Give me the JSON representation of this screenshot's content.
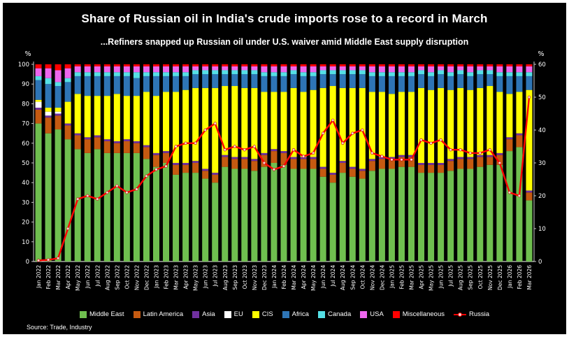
{
  "header": {
    "title": "Share of Russian oil in India's crude imports rose to a record in March",
    "subtitle": "...Refiners snapped up Russian oil under U.S. waiver amid Middle East supply disruption"
  },
  "source": "Source: Trade, Industry",
  "colors": {
    "background": "#000000",
    "text": "#ffffff",
    "russia_line": "#ff0000"
  },
  "chart_data": {
    "type": "bar",
    "stacked": true,
    "title": "Share of Russian oil in India's crude imports rose to a record in March",
    "subtitle": "...Refiners snapped up Russian oil under U.S. waiver amid Middle East supply disruption",
    "left_axis": {
      "label": "%",
      "min": 0,
      "max": 100,
      "step": 10
    },
    "right_axis": {
      "label": "%",
      "min": 0,
      "max": 60,
      "step": 10
    },
    "legend_position": "bottom",
    "grid": false,
    "categories": [
      "Jan 2022",
      "Feb 2022",
      "Mar 2022",
      "Apr 2022",
      "May 2022",
      "Jun 2022",
      "Jul 2022",
      "Aug 2022",
      "Sep 2022",
      "Oct 2022",
      "Nov 2022",
      "Dec 2022",
      "Jan 2023",
      "Feb 2023",
      "Mar 2023",
      "Apr 2023",
      "May 2023",
      "Jun 2023",
      "Jul 2023",
      "Aug 2023",
      "Sep 2023",
      "Oct 2023",
      "Nov 2023",
      "Dec 2023",
      "Jan 2024",
      "Feb 2024",
      "Mar 2024",
      "Apr 2024",
      "May 2024",
      "Jun 2024",
      "Jul 2024",
      "Aug 2024",
      "Sep 2024",
      "Oct 2024",
      "Nov 2024",
      "Dec 2024",
      "Jan 2025",
      "Feb 2025",
      "Mar 2025",
      "Apr 2025",
      "May 2025",
      "Jun 2025",
      "Jul 2025",
      "Aug 2025",
      "Sep 2025",
      "Oct 2025",
      "Nov 2025",
      "Dec 2025",
      "Jan 2026",
      "Feb 2026",
      "Mar 2026"
    ],
    "series": [
      {
        "name": "Middle East",
        "color": "#6fbf4f",
        "values": [
          70,
          65,
          67,
          62,
          57,
          55,
          57,
          55,
          55,
          55,
          55,
          52,
          48,
          50,
          44,
          45,
          45,
          42,
          40,
          48,
          47,
          47,
          46,
          48,
          50,
          49,
          47,
          47,
          47,
          43,
          40,
          45,
          43,
          42,
          46,
          47,
          47,
          48,
          48,
          45,
          45,
          45,
          46,
          47,
          47,
          48,
          49,
          49,
          56,
          58,
          31
        ]
      },
      {
        "name": "Latin America",
        "color": "#c55a11",
        "values": [
          7,
          8,
          7,
          7,
          7,
          7,
          6,
          6,
          5,
          6,
          5,
          6,
          6,
          5,
          5,
          4,
          5,
          4,
          4,
          5,
          5,
          5,
          5,
          6,
          6,
          6,
          5,
          5,
          5,
          4,
          4,
          5,
          4,
          4,
          5,
          5,
          5,
          5,
          5,
          4,
          4,
          4,
          5,
          5,
          5,
          5,
          4,
          5,
          6,
          6,
          4
        ]
      },
      {
        "name": "Asia",
        "color": "#7030a0",
        "values": [
          1,
          1,
          1,
          1,
          1,
          1,
          1,
          1,
          1,
          1,
          1,
          1,
          1,
          1,
          1,
          1,
          1,
          1,
          1,
          1,
          1,
          1,
          1,
          1,
          1,
          1,
          1,
          1,
          1,
          1,
          1,
          1,
          1,
          1,
          1,
          1,
          1,
          1,
          1,
          1,
          1,
          1,
          1,
          1,
          1,
          1,
          1,
          1,
          1,
          1,
          1
        ]
      },
      {
        "name": "EU",
        "color": "#ffffff",
        "values": [
          3,
          2,
          1,
          0,
          0,
          0,
          0,
          0,
          0,
          0,
          0,
          0,
          0,
          0,
          0,
          0,
          0,
          0,
          0,
          0,
          0,
          0,
          0,
          0,
          0,
          0,
          0,
          0,
          0,
          0,
          0,
          0,
          0,
          0,
          0,
          0,
          0,
          0,
          0,
          0,
          0,
          0,
          0,
          0,
          0,
          0,
          0,
          0,
          0,
          0,
          0
        ]
      },
      {
        "name": "CIS",
        "color": "#ffff00",
        "values": [
          1,
          2,
          2,
          11,
          20,
          21,
          20,
          22,
          24,
          22,
          23,
          27,
          29,
          30,
          36,
          37,
          37,
          41,
          43,
          35,
          36,
          35,
          36,
          31,
          29,
          30,
          35,
          33,
          34,
          40,
          44,
          37,
          40,
          41,
          34,
          33,
          32,
          32,
          32,
          38,
          37,
          38,
          35,
          35,
          34,
          34,
          35,
          31,
          22,
          21,
          51
        ]
      },
      {
        "name": "Africa",
        "color": "#2e75b6",
        "values": [
          10,
          12,
          11,
          10,
          9,
          10,
          10,
          10,
          9,
          10,
          9,
          8,
          10,
          8,
          8,
          7,
          7,
          7,
          7,
          6,
          6,
          7,
          7,
          8,
          8,
          8,
          7,
          8,
          7,
          7,
          6,
          7,
          7,
          7,
          8,
          8,
          9,
          8,
          8,
          7,
          7,
          7,
          7,
          7,
          7,
          7,
          6,
          8,
          9,
          8,
          7
        ]
      },
      {
        "name": "Canada",
        "color": "#55e0e6",
        "values": [
          2,
          3,
          2,
          2,
          2,
          2,
          2,
          2,
          2,
          2,
          3,
          2,
          2,
          2,
          2,
          2,
          2,
          2,
          2,
          2,
          2,
          2,
          2,
          2,
          2,
          2,
          2,
          2,
          2,
          2,
          2,
          2,
          2,
          2,
          2,
          2,
          2,
          2,
          2,
          2,
          2,
          2,
          2,
          2,
          2,
          2,
          2,
          2,
          2,
          2,
          2
        ]
      },
      {
        "name": "USA",
        "color": "#ee66ee",
        "values": [
          4,
          5,
          6,
          5,
          3,
          3,
          3,
          3,
          3,
          3,
          3,
          3,
          3,
          3,
          3,
          3,
          2,
          2,
          2,
          2,
          2,
          2,
          2,
          3,
          3,
          3,
          2,
          3,
          3,
          2,
          2,
          2,
          2,
          2,
          3,
          3,
          3,
          3,
          3,
          2,
          3,
          2,
          3,
          2,
          3,
          2,
          2,
          3,
          3,
          3,
          3
        ]
      },
      {
        "name": "Miscellaneous",
        "color": "#ff0000",
        "values": [
          2,
          2,
          3,
          2,
          1,
          1,
          1,
          1,
          1,
          1,
          1,
          1,
          1,
          1,
          1,
          1,
          1,
          1,
          1,
          1,
          1,
          1,
          1,
          1,
          1,
          1,
          1,
          1,
          1,
          1,
          1,
          1,
          1,
          1,
          1,
          1,
          1,
          1,
          1,
          1,
          1,
          1,
          1,
          1,
          1,
          1,
          1,
          1,
          1,
          1,
          1
        ]
      }
    ],
    "line": {
      "name": "Russia",
      "color": "#ff0000",
      "axis": "right",
      "values": [
        0.3,
        0.5,
        1,
        10,
        19,
        20,
        19,
        21,
        23,
        21,
        22,
        26,
        28,
        29,
        35,
        36,
        36,
        40,
        42,
        34,
        35,
        34,
        35,
        30,
        28,
        29,
        34,
        32,
        33,
        39,
        43,
        36,
        39,
        40,
        33,
        32,
        31,
        31,
        31,
        37,
        36,
        37,
        34,
        34,
        33,
        33,
        34,
        30,
        21,
        20,
        50
      ]
    }
  }
}
